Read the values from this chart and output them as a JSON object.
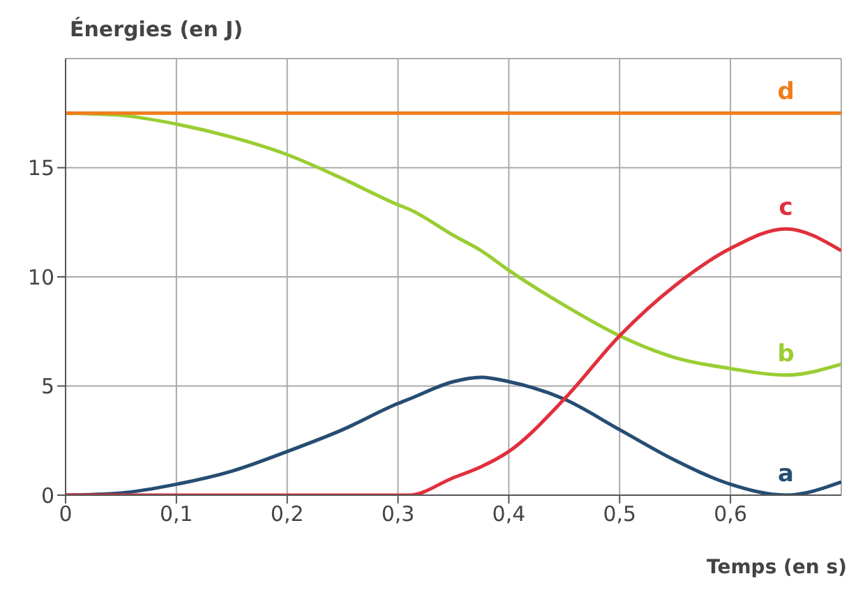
{
  "chart_data": {
    "type": "line",
    "xlabel": "Temps (en s)",
    "ylabel": "Énergies (en J)",
    "x": [
      0,
      0.05,
      0.1,
      0.15,
      0.2,
      0.25,
      0.3,
      0.31,
      0.35,
      0.375,
      0.4,
      0.45,
      0.5,
      0.55,
      0.6,
      0.65,
      0.7
    ],
    "series": [
      {
        "name": "a",
        "color": "#264d73",
        "values": [
          0,
          0.1,
          0.5,
          1.1,
          2.0,
          3.0,
          4.2,
          4.4,
          5.2,
          5.4,
          5.2,
          4.4,
          3.0,
          1.6,
          0.5,
          0,
          0.6
        ]
      },
      {
        "name": "b",
        "color": "#9acd32",
        "values": [
          17.5,
          17.4,
          17.0,
          16.4,
          15.6,
          14.5,
          13.3,
          13.1,
          11.9,
          11.2,
          10.3,
          8.7,
          7.3,
          6.3,
          5.8,
          5.5,
          6.0
        ]
      },
      {
        "name": "c",
        "color": "#e0303c",
        "values": [
          0,
          0,
          0,
          0,
          0,
          0,
          0,
          0,
          0.8,
          1.3,
          2.0,
          4.4,
          7.3,
          9.6,
          11.3,
          12.2,
          11.2
        ]
      },
      {
        "name": "d",
        "color": "#f07d1a",
        "values": [
          17.5,
          17.5,
          17.5,
          17.5,
          17.5,
          17.5,
          17.5,
          17.5,
          17.5,
          17.5,
          17.5,
          17.5,
          17.5,
          17.5,
          17.5,
          17.5,
          17.5
        ]
      }
    ],
    "xlim": [
      0,
      0.7
    ],
    "ylim": [
      0,
      20
    ],
    "xticks": [
      0,
      {
        "value": 0.1,
        "label": "0,1"
      },
      {
        "value": 0.2,
        "label": "0,2"
      },
      {
        "value": 0.3,
        "label": "0,3"
      },
      {
        "value": 0.4,
        "label": "0,4"
      },
      {
        "value": 0.5,
        "label": "0,5"
      },
      {
        "value": 0.6,
        "label": "0,6"
      }
    ],
    "yticks": [
      0,
      5,
      10,
      15
    ],
    "grid": true,
    "legend": false,
    "marker": "none",
    "line_style": "solid"
  }
}
